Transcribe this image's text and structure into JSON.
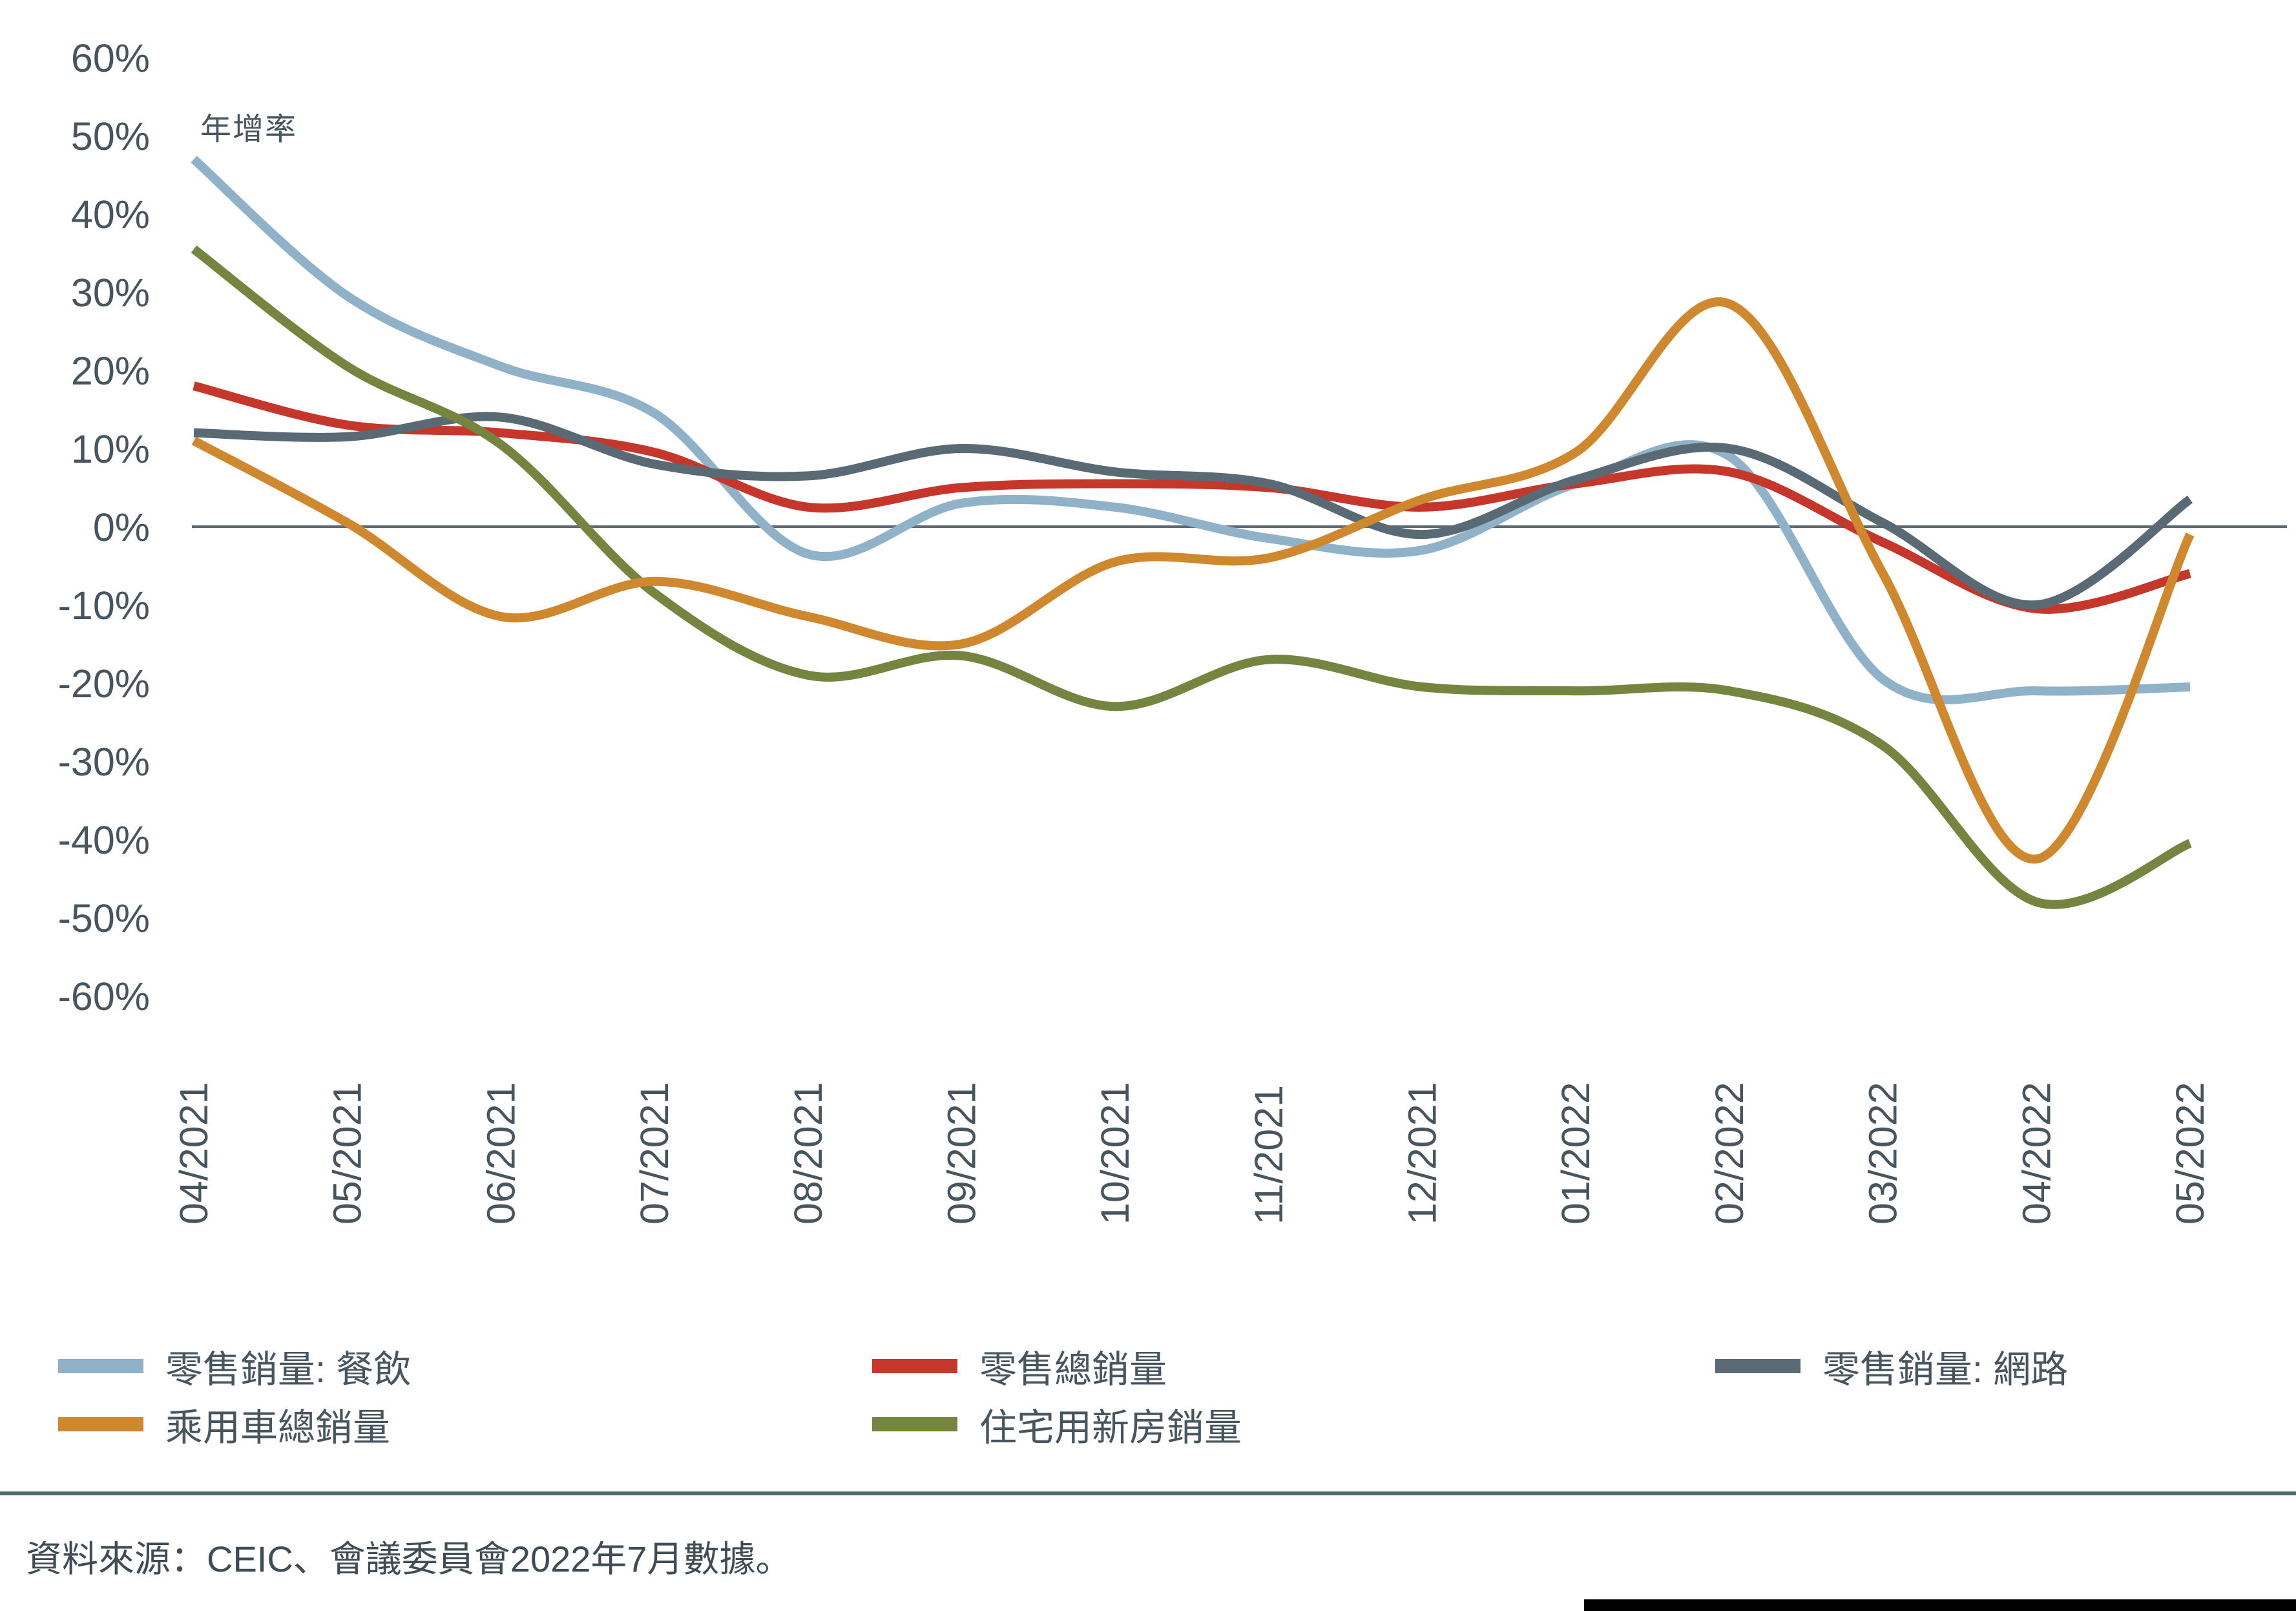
{
  "y_axis_title": "年增率",
  "source": "資料來源：CEIC、會議委員會2022年7月數據。",
  "colors": {
    "axis_text": "#47565E",
    "zero_line": "#5C6B75",
    "separator": "#56666F",
    "catering_blue": "#8FB2C9",
    "total_retail_red": "#C5372A",
    "online_slate": "#5A6A74",
    "cars_orange": "#D0882E",
    "homes_green": "#75853F"
  },
  "chart_data": {
    "type": "line",
    "title": "",
    "ylabel": "年增率",
    "xlabel": "",
    "ylim": [
      -60,
      60
    ],
    "ytick_step": 10,
    "ytick_suffix": "%",
    "grid": false,
    "legend_position": "bottom",
    "x": [
      "04/2021",
      "05/2021",
      "06/2021",
      "07/2021",
      "08/2021",
      "09/2021",
      "10/2021",
      "11/2021",
      "12/2021",
      "01/2022",
      "02/2022",
      "03/2022",
      "04/2022",
      "05/2022"
    ],
    "series": [
      {
        "name": "零售銷量: 餐飲",
        "color": "#8FB2C9",
        "values": [
          47,
          29.5,
          20.5,
          14.5,
          -3.5,
          3,
          2.5,
          -1.5,
          -3,
          5.5,
          9,
          -19.5,
          -21,
          -20.5
        ]
      },
      {
        "name": "零售總銷量",
        "color": "#C5372A",
        "values": [
          18,
          13,
          12,
          9.5,
          2.5,
          5,
          5.5,
          5,
          2.5,
          5.5,
          7,
          -2,
          -10.5,
          -6
        ]
      },
      {
        "name": "零售銷量: 網路",
        "color": "#5A6A74",
        "values": [
          12,
          11.5,
          14,
          8,
          6.5,
          10,
          7,
          5.5,
          -1,
          6,
          10,
          0.5,
          -10,
          3.5
        ]
      },
      {
        "name": "乘用車總銷量",
        "color": "#D0882E",
        "values": [
          11,
          0.5,
          -11.5,
          -7,
          -11.5,
          -15,
          -4.5,
          -4,
          3.5,
          9.5,
          28.5,
          -6,
          -42.5,
          -1
        ]
      },
      {
        "name": "住宅用新房銷量",
        "color": "#75853F",
        "values": [
          35.5,
          20.5,
          10.5,
          -8.5,
          -19,
          -16.5,
          -23,
          -17,
          -20.5,
          -21,
          -21,
          -28,
          -48,
          -40.5
        ]
      }
    ],
    "legend_rows": [
      [
        0,
        1,
        2
      ],
      [
        3,
        4
      ]
    ],
    "draw_order": [
      0,
      1,
      2,
      4,
      3
    ]
  }
}
